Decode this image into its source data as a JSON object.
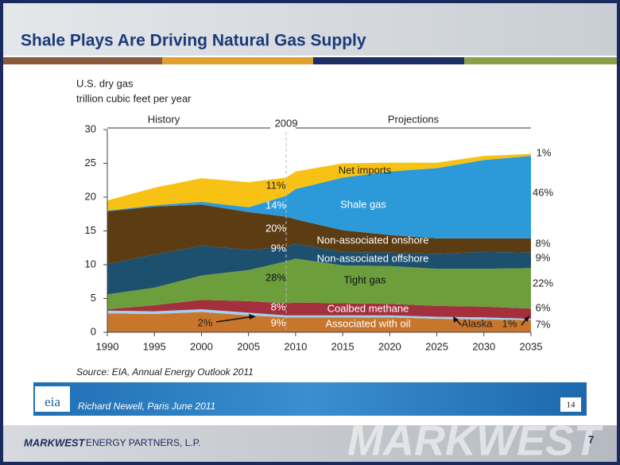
{
  "slide": {
    "title": "Shale Plays Are Driving Natural Gas Supply",
    "source": "Source:  EIA, Annual Energy Outlook 2011",
    "banner_logo": "eia",
    "banner_text": "Richard Newell, Paris June 2011",
    "banner_page": "14",
    "company_bold": "MARKWEST",
    "company_rest": "ENERGY PARTNERS, L.P.",
    "watermark": "MARKWEST",
    "page_number": "7"
  },
  "chart_data": {
    "type": "stacked-area",
    "y_label_lines": [
      "U.S. dry gas",
      "trillion cubic feet per year"
    ],
    "history_label": "History",
    "projections_label": "Projections",
    "divider_x": 2009,
    "x": [
      1990,
      1995,
      2000,
      2005,
      2009,
      2010,
      2015,
      2020,
      2025,
      2030,
      2035
    ],
    "xlim": [
      1990,
      2035
    ],
    "xticks": [
      1990,
      1995,
      2000,
      2005,
      2010,
      2015,
      2020,
      2025,
      2030,
      2035
    ],
    "ylim": [
      0,
      30
    ],
    "yticks": [
      0,
      5,
      10,
      15,
      20,
      25,
      30
    ],
    "series": [
      {
        "name": "Associated with oil",
        "color": "#c8762e",
        "values": [
          2.8,
          2.7,
          3.0,
          2.5,
          2.2,
          2.2,
          2.2,
          2.2,
          2.0,
          1.9,
          1.8
        ]
      },
      {
        "name": "Alaska",
        "color": "#9ed2ee",
        "values": [
          0.4,
          0.4,
          0.4,
          0.4,
          0.3,
          0.3,
          0.3,
          0.3,
          0.3,
          0.3,
          0.2
        ]
      },
      {
        "name": "Coalbed methane",
        "color": "#a3303c",
        "values": [
          0.2,
          0.9,
          1.4,
          1.7,
          1.8,
          1.9,
          1.8,
          1.7,
          1.6,
          1.6,
          1.5
        ]
      },
      {
        "name": "Tight gas",
        "color": "#6c9e3c",
        "values": [
          2.2,
          2.6,
          3.6,
          4.6,
          6.2,
          6.5,
          5.6,
          5.6,
          5.5,
          5.6,
          6.0
        ]
      },
      {
        "name": "Non-associated offshore",
        "color": "#1d4f6e",
        "values": [
          4.5,
          4.9,
          4.4,
          3.0,
          2.1,
          2.2,
          2.0,
          2.0,
          2.2,
          2.5,
          2.3
        ]
      },
      {
        "name": "Non-associated onshore",
        "color": "#5c3c12",
        "values": [
          7.8,
          7.1,
          6.1,
          5.6,
          4.5,
          3.6,
          3.2,
          2.6,
          2.3,
          2.0,
          2.1
        ]
      },
      {
        "name": "Shale gas",
        "color": "#2c9ad8",
        "values": [
          0.1,
          0.2,
          0.4,
          0.7,
          3.1,
          4.5,
          7.8,
          9.4,
          10.4,
          11.6,
          12.2
        ]
      },
      {
        "name": "Net imports",
        "color": "#f8c214",
        "values": [
          1.5,
          2.6,
          3.5,
          3.7,
          2.7,
          2.6,
          2.1,
          1.3,
          0.8,
          0.6,
          0.3
        ]
      }
    ],
    "annotations": [
      "11%",
      "14%",
      "20%",
      "9%",
      "28%",
      "8%",
      "9%",
      "2%",
      "1%",
      "46%",
      "8%",
      "9%",
      "22%",
      "6%",
      "7%",
      "1%"
    ]
  }
}
